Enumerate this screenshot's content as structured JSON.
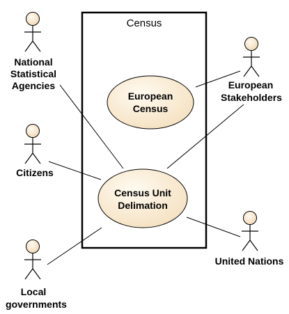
{
  "system": {
    "title": "Census"
  },
  "use_cases": {
    "european_census": {
      "line1": "European",
      "line2": "Census"
    },
    "census_unit_delimation": {
      "line1": "Census Unit",
      "line2": "Delimation"
    }
  },
  "actors": {
    "nsa": {
      "line1": "National",
      "line2": "Statistical",
      "line3": "Agencies"
    },
    "citizens": {
      "line1": "Citizens"
    },
    "local_governments": {
      "line1": "Local",
      "line2": "governments"
    },
    "european_stakeholders": {
      "line1": "European",
      "line2": "Stakeholders"
    },
    "united_nations": {
      "line1": "United Nations"
    }
  },
  "colors": {
    "actor_fill": "#f8e8cf",
    "usecase_fill": "#fdf2dc",
    "stroke": "#000000"
  }
}
